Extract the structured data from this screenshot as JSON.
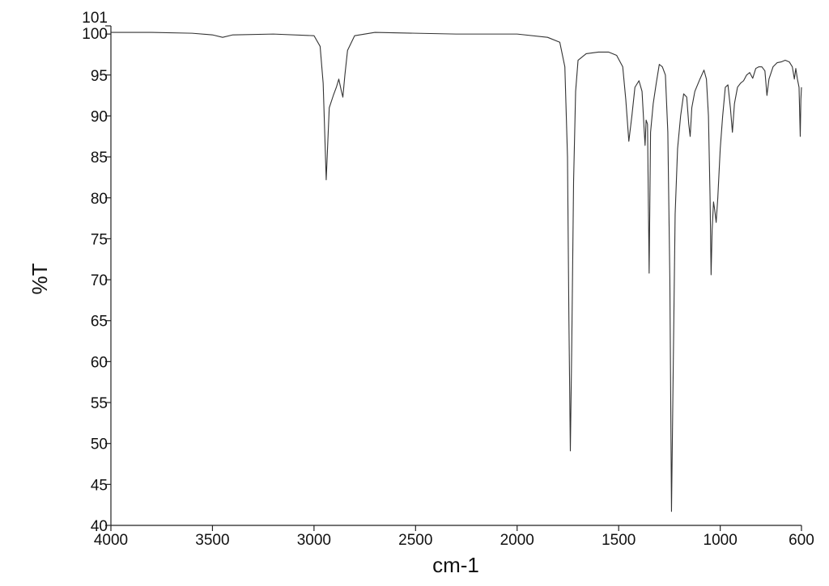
{
  "chart_data": {
    "type": "line",
    "xlabel": "cm-1",
    "ylabel": "%T",
    "xlim": [
      4000,
      600
    ],
    "ylim": [
      40,
      101
    ],
    "xticks": [
      4000,
      3500,
      3000,
      2500,
      2000,
      1500,
      1000,
      600
    ],
    "yticks": [
      40,
      45,
      50,
      55,
      60,
      65,
      70,
      75,
      80,
      85,
      90,
      95,
      100,
      101
    ],
    "x": [
      4000,
      3800,
      3600,
      3500,
      3450,
      3400,
      3200,
      3000,
      2970,
      2955,
      2940,
      2925,
      2905,
      2890,
      2878,
      2865,
      2858,
      2848,
      2835,
      2800,
      2700,
      2500,
      2300,
      2000,
      1850,
      1790,
      1765,
      1752,
      1745,
      1738,
      1731,
      1722,
      1712,
      1700,
      1660,
      1600,
      1550,
      1510,
      1480,
      1465,
      1450,
      1435,
      1420,
      1400,
      1385,
      1375,
      1370,
      1365,
      1358,
      1350,
      1343,
      1330,
      1315,
      1300,
      1285,
      1270,
      1258,
      1248,
      1240,
      1232,
      1222,
      1210,
      1195,
      1180,
      1165,
      1155,
      1148,
      1140,
      1125,
      1100,
      1080,
      1068,
      1058,
      1050,
      1045,
      1040,
      1033,
      1027,
      1020,
      1012,
      1000,
      988,
      975,
      962,
      950,
      940,
      930,
      915,
      900,
      885,
      870,
      855,
      840,
      825,
      810,
      795,
      780,
      770,
      760,
      740,
      720,
      700,
      680,
      660,
      645,
      635,
      628,
      620,
      612,
      606,
      603,
      600
    ],
    "series": [
      {
        "name": "%T",
        "color": "#333333",
        "values": [
          100.2,
          100.2,
          100.1,
          99.9,
          99.6,
          99.9,
          100,
          99.8,
          98.5,
          94,
          82.2,
          91,
          92.5,
          93.5,
          94.5,
          93,
          92.3,
          95,
          98,
          99.8,
          100.2,
          100.1,
          100,
          100,
          99.6,
          99,
          96,
          85,
          65,
          49.1,
          62,
          82,
          93,
          96.8,
          97.6,
          97.8,
          97.8,
          97.4,
          96,
          92,
          86.9,
          90,
          93.5,
          94.3,
          93,
          88.5,
          86.4,
          89.5,
          89,
          70.8,
          88,
          91.5,
          94,
          96.3,
          96,
          95,
          88,
          70,
          41.7,
          58,
          78,
          86,
          90,
          92.7,
          92.3,
          89,
          87.5,
          91,
          93,
          94.5,
          95.6,
          94.5,
          90,
          80,
          70.6,
          76,
          79.5,
          78.5,
          77,
          80,
          86,
          90,
          93.5,
          93.8,
          91,
          88,
          91.5,
          93.5,
          94,
          94.3,
          95,
          95.3,
          94.6,
          95.8,
          96,
          96,
          95.5,
          92.5,
          94.5,
          96,
          96.5,
          96.6,
          96.8,
          96.6,
          96,
          94.5,
          95.8,
          94.5,
          93.5,
          87.5,
          92,
          93.5
        ]
      }
    ]
  }
}
